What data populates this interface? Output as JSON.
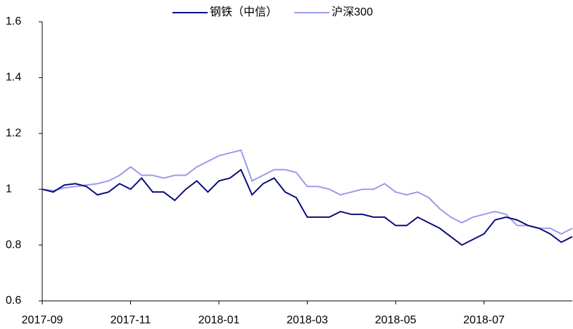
{
  "chart_data": {
    "type": "line",
    "categories": [
      "2017-09",
      null,
      null,
      null,
      null,
      null,
      null,
      null,
      "2017-11",
      null,
      null,
      null,
      null,
      null,
      null,
      null,
      "2018-01",
      null,
      null,
      null,
      null,
      null,
      null,
      null,
      "2018-03",
      null,
      null,
      null,
      null,
      null,
      null,
      null,
      "2018-05",
      null,
      null,
      null,
      null,
      null,
      null,
      null,
      "2018-07",
      null,
      null,
      null,
      null,
      null,
      null,
      null,
      null
    ],
    "series": [
      {
        "name": "钢铁（中信）",
        "color": "#0b0b7c",
        "values": [
          1.0,
          0.99,
          1.015,
          1.02,
          1.01,
          0.98,
          0.99,
          1.02,
          1.0,
          1.04,
          0.99,
          0.99,
          0.96,
          1.0,
          1.03,
          0.99,
          1.03,
          1.04,
          1.07,
          0.98,
          1.02,
          1.04,
          0.99,
          0.97,
          0.9,
          0.9,
          0.9,
          0.92,
          0.91,
          0.91,
          0.9,
          0.9,
          0.87,
          0.87,
          0.9,
          0.88,
          0.86,
          0.83,
          0.8,
          0.82,
          0.84,
          0.89,
          0.9,
          0.89,
          0.87,
          0.86,
          0.84,
          0.81,
          0.83
        ]
      },
      {
        "name": "沪深300",
        "color": "#9a9aee",
        "values": [
          1.0,
          0.995,
          1.005,
          1.01,
          1.015,
          1.02,
          1.03,
          1.05,
          1.08,
          1.05,
          1.05,
          1.04,
          1.05,
          1.05,
          1.08,
          1.1,
          1.12,
          1.13,
          1.14,
          1.03,
          1.05,
          1.07,
          1.07,
          1.06,
          1.01,
          1.01,
          1.0,
          0.98,
          0.99,
          1.0,
          1.0,
          1.02,
          0.99,
          0.98,
          0.99,
          0.97,
          0.93,
          0.9,
          0.88,
          0.9,
          0.91,
          0.92,
          0.91,
          0.87,
          0.87,
          0.86,
          0.86,
          0.84,
          0.86
        ]
      }
    ],
    "ylim": [
      0.6,
      1.6
    ],
    "yticks": [
      0.6,
      0.8,
      1,
      1.2,
      1.4,
      1.6
    ],
    "legend": "top"
  }
}
